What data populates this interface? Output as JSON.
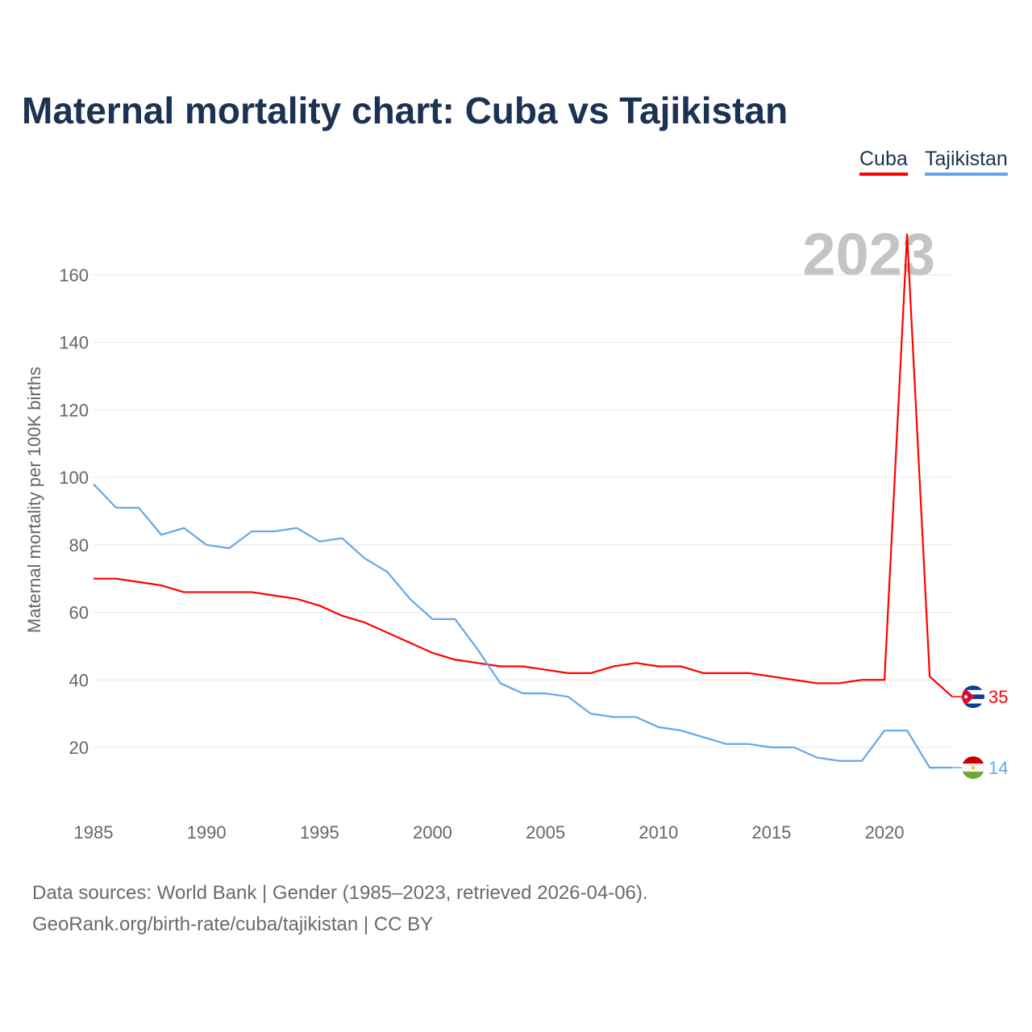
{
  "chart_data": {
    "type": "line",
    "title": "Maternal mortality chart: Cuba vs Tajikistan",
    "ylabel": "Maternal mortality per 100K births",
    "xlabel": "",
    "year_watermark": "2023",
    "xlim": [
      1985,
      2023
    ],
    "ylim": [
      0,
      175
    ],
    "xticks": [
      1985,
      1990,
      1995,
      2000,
      2005,
      2010,
      2015,
      2020
    ],
    "yticks": [
      20,
      40,
      60,
      80,
      100,
      120,
      140,
      160
    ],
    "grid": true,
    "legend": "top-right",
    "x": [
      1985,
      1986,
      1987,
      1988,
      1989,
      1990,
      1991,
      1992,
      1993,
      1994,
      1995,
      1996,
      1997,
      1998,
      1999,
      2000,
      2001,
      2002,
      2003,
      2004,
      2005,
      2006,
      2007,
      2008,
      2009,
      2010,
      2011,
      2012,
      2013,
      2014,
      2015,
      2016,
      2017,
      2018,
      2019,
      2020,
      2021,
      2022,
      2023
    ],
    "series": [
      {
        "name": "Cuba",
        "color": "#ff0000",
        "end_label": "35",
        "values": [
          70,
          70,
          69,
          68,
          66,
          66,
          66,
          66,
          65,
          64,
          62,
          59,
          57,
          54,
          51,
          48,
          46,
          45,
          44,
          44,
          43,
          42,
          42,
          44,
          45,
          44,
          44,
          42,
          42,
          42,
          41,
          40,
          39,
          39,
          40,
          40,
          172,
          41,
          35
        ]
      },
      {
        "name": "Tajikistan",
        "color": "#63a7ea",
        "end_label": "14",
        "values": [
          98,
          91,
          91,
          83,
          85,
          80,
          79,
          84,
          84,
          85,
          81,
          82,
          76,
          72,
          64,
          58,
          58,
          49,
          39,
          36,
          36,
          35,
          30,
          29,
          29,
          26,
          25,
          23,
          21,
          21,
          20,
          20,
          17,
          16,
          16,
          25,
          25,
          14,
          14
        ]
      }
    ]
  },
  "footer": {
    "line1": "Data sources: World Bank | Gender (1985–2023, retrieved 2026-04-06).",
    "line2": "GeoRank.org/birth-rate/cuba/tajikistan | CC BY"
  }
}
